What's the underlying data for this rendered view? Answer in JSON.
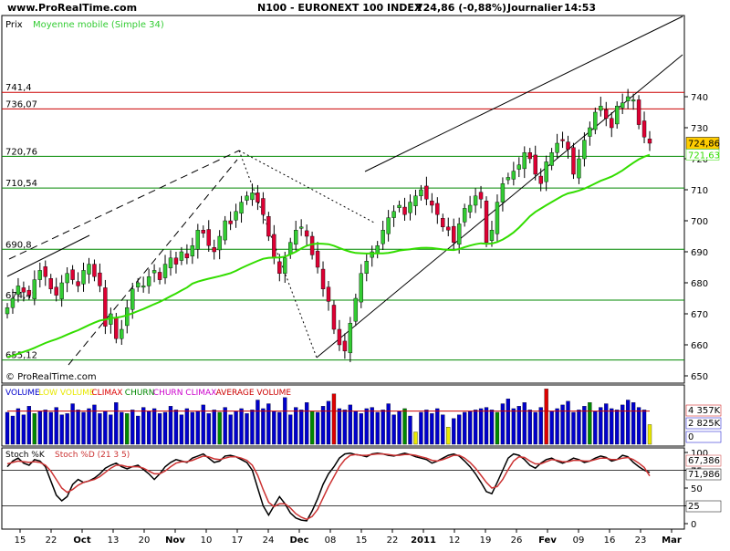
{
  "header": {
    "site": "www.ProRealTime.com",
    "instrument": "N100 - EURONEXT 100 INDEX",
    "quote": "724,86 (-0,88%)",
    "period": "Journalier",
    "time": "14:53"
  },
  "price_panel": {
    "label": "Prix",
    "ma_label": "Moyenne mobile (Simple 34)",
    "copyright": "© ProRealTime.com",
    "last_price_tag": "724,86",
    "ma_tag": "721,63"
  },
  "volume_panel": {
    "legend": [
      {
        "text": "VOLUME",
        "color": "#0000cc"
      },
      {
        "text": "LOW VOLUME",
        "color": "#e8e800"
      },
      {
        "text": "CLIMAX",
        "color": "#dd0000"
      },
      {
        "text": "CHURN",
        "color": "#008800"
      },
      {
        "text": "CHURN CLIMAX",
        "color": "#cc00cc"
      },
      {
        "text": "AVERAGE VOLUME",
        "color": "#cc0000"
      }
    ],
    "tags": [
      "4 357K",
      "2 825K",
      "0"
    ]
  },
  "stoch_panel": {
    "legend": [
      {
        "text": "Stoch %K",
        "color": "#000000"
      },
      {
        "text": "Stoch %D (21 3 5)",
        "color": "#cc3333"
      }
    ],
    "tags": [
      "67,386",
      "71,986",
      "25"
    ]
  },
  "colors": {
    "bull": "#33cc33",
    "bear": "#dd0033",
    "ma": "#33dd00",
    "hline": "#cc0000",
    "support": "#008800",
    "volume": "#0000cc"
  },
  "chart_data": [
    {
      "type": "candlestick",
      "title": "N100 - EURONEXT 100 INDEX",
      "ylim": [
        648,
        745
      ],
      "y_ticks": [
        650,
        660,
        670,
        680,
        690,
        700,
        710,
        720,
        730,
        740
      ],
      "x_ticks": [
        "15",
        "22",
        "Oct",
        "13",
        "20",
        "Nov",
        "10",
        "17",
        "24",
        "Dec",
        "08",
        "15",
        "22",
        "2011",
        "12",
        "19",
        "26",
        "Fev",
        "09",
        "16",
        "23",
        "Mar"
      ],
      "grid": false,
      "horizontal_levels": [
        {
          "label": "741,4",
          "value": 741.4,
          "color": "red"
        },
        {
          "label": "736,07",
          "value": 736.07,
          "color": "red"
        },
        {
          "label": "720,76",
          "value": 720.76,
          "color": "green"
        },
        {
          "label": "710,54",
          "value": 710.54,
          "color": "green"
        },
        {
          "label": "690,8",
          "value": 690.8,
          "color": "green"
        },
        {
          "label": "674,42",
          "value": 674.42,
          "color": "green"
        },
        {
          "label": "655,12",
          "value": 655.12,
          "color": "green"
        }
      ],
      "close": [
        672,
        675,
        679,
        677,
        676,
        681,
        684,
        682,
        678,
        676,
        680,
        683,
        681,
        679,
        684,
        686,
        682,
        679,
        666,
        670,
        662,
        665,
        672,
        678,
        680,
        679,
        682,
        684,
        681,
        686,
        688,
        686,
        690,
        688,
        692,
        697,
        696,
        692,
        690,
        695,
        700,
        699,
        703,
        706,
        708,
        709,
        706,
        702,
        695,
        688,
        683,
        688,
        693,
        697,
        698,
        695,
        689,
        685,
        678,
        674,
        665,
        660,
        658,
        667,
        675,
        683,
        687,
        690,
        692,
        697,
        701,
        703,
        705,
        702,
        706,
        708,
        710,
        707,
        705,
        702,
        698,
        697,
        693,
        699,
        704,
        705,
        708,
        707,
        693,
        697,
        706,
        712,
        714,
        716,
        718,
        722,
        720,
        715,
        712,
        719,
        722,
        725,
        726,
        723,
        715,
        720,
        726,
        730,
        735,
        737,
        733,
        730,
        737,
        738,
        740,
        739,
        731,
        727,
        725
      ],
      "moving_average": {
        "name": "Moyenne mobile (Simple 34)",
        "period": 34,
        "last": 721.63
      }
    },
    {
      "type": "bar",
      "title": "VOLUME",
      "series": [
        {
          "name": "VOLUME",
          "values": [
            2.6,
            2.3,
            2.9,
            2.4,
            3.1,
            2.5,
            2.7,
            2.8,
            2.6,
            3.0,
            2.4,
            2.5,
            3.3,
            2.8,
            2.6,
            2.9,
            3.2,
            2.5,
            2.7,
            2.4,
            3.4,
            2.6,
            2.5,
            2.8,
            2.3,
            3.0,
            2.7,
            2.9,
            2.5,
            2.6,
            3.1,
            2.8,
            2.4,
            2.9,
            2.6,
            2.7,
            3.2,
            2.5,
            2.8,
            2.6,
            3.0,
            2.4,
            2.7,
            2.9,
            2.5,
            2.8,
            3.6,
            2.9,
            3.3,
            2.7,
            2.6,
            3.8,
            2.4,
            3.0,
            2.8,
            3.4,
            2.7,
            2.6,
            3.1,
            3.5,
            4.1,
            2.9,
            2.8,
            3.2,
            2.7,
            2.5,
            2.9,
            3.0,
            2.6,
            2.8,
            3.3,
            2.4,
            2.7,
            2.9,
            2.3,
            1.0,
            2.6,
            2.8,
            2.5,
            2.9,
            2.4,
            1.4,
            2.1,
            2.4,
            2.6,
            2.7,
            2.8,
            2.9,
            3.0,
            2.8,
            2.6,
            3.3,
            3.7,
            2.9,
            3.1,
            3.4,
            2.8,
            2.6,
            3.0,
            4.5,
            2.7,
            2.9,
            3.2,
            3.5,
            2.6,
            2.8,
            3.1,
            3.4,
            2.7,
            3.0,
            3.3,
            2.9,
            2.8,
            3.2,
            3.6,
            3.4,
            3.0,
            2.8,
            1.6
          ]
        },
        {
          "name": "AVERAGE VOLUME",
          "values": [
            2.7
          ]
        }
      ],
      "ylim": [
        0,
        4.6
      ],
      "unit": "M"
    },
    {
      "type": "line",
      "title": "Stoch %K / Stoch %D (21 3 5)",
      "ylim": [
        0,
        100
      ],
      "y_ticks": [
        0,
        25,
        50,
        75,
        100
      ],
      "reference_levels": [
        25,
        75
      ],
      "series": [
        {
          "name": "Stoch %K",
          "values": [
            80,
            88,
            92,
            85,
            82,
            90,
            88,
            80,
            60,
            40,
            32,
            38,
            55,
            62,
            58,
            60,
            64,
            70,
            78,
            82,
            85,
            80,
            77,
            80,
            82,
            76,
            70,
            62,
            70,
            80,
            86,
            90,
            88,
            86,
            92,
            95,
            98,
            92,
            86,
            88,
            95,
            96,
            94,
            90,
            86,
            75,
            50,
            25,
            12,
            25,
            38,
            28,
            15,
            8,
            5,
            4,
            18,
            35,
            55,
            70,
            80,
            92,
            98,
            99,
            97,
            96,
            94,
            98,
            99,
            98,
            96,
            95,
            97,
            99,
            97,
            94,
            92,
            90,
            85,
            88,
            92,
            96,
            98,
            95,
            88,
            80,
            70,
            58,
            45,
            42,
            58,
            75,
            92,
            98,
            96,
            90,
            82,
            78,
            85,
            90,
            92,
            88,
            85,
            88,
            92,
            90,
            86,
            88,
            92,
            95,
            93,
            88,
            90,
            96,
            94,
            86,
            80,
            75,
            72
          ]
        },
        {
          "name": "Stoch %D (21 3 5)",
          "values": [
            84,
            86,
            88,
            87,
            86,
            87,
            86,
            82,
            74,
            62,
            50,
            44,
            48,
            54,
            58,
            60,
            62,
            66,
            72,
            78,
            82,
            82,
            80,
            80,
            80,
            78,
            74,
            70,
            70,
            74,
            80,
            85,
            87,
            87,
            89,
            92,
            95,
            94,
            91,
            90,
            92,
            94,
            94,
            92,
            89,
            82,
            68,
            48,
            30,
            24,
            28,
            28,
            22,
            14,
            9,
            6,
            10,
            20,
            36,
            52,
            66,
            80,
            90,
            96,
            97,
            96,
            96,
            97,
            98,
            98,
            97,
            96,
            96,
            97,
            97,
            96,
            94,
            92,
            89,
            88,
            90,
            93,
            96,
            96,
            92,
            86,
            78,
            68,
            58,
            50,
            52,
            62,
            76,
            88,
            94,
            93,
            88,
            84,
            84,
            87,
            90,
            89,
            87,
            87,
            89,
            89,
            88,
            88,
            90,
            92,
            92,
            90,
            90,
            92,
            93,
            90,
            85,
            79,
            67
          ]
        }
      ]
    }
  ]
}
